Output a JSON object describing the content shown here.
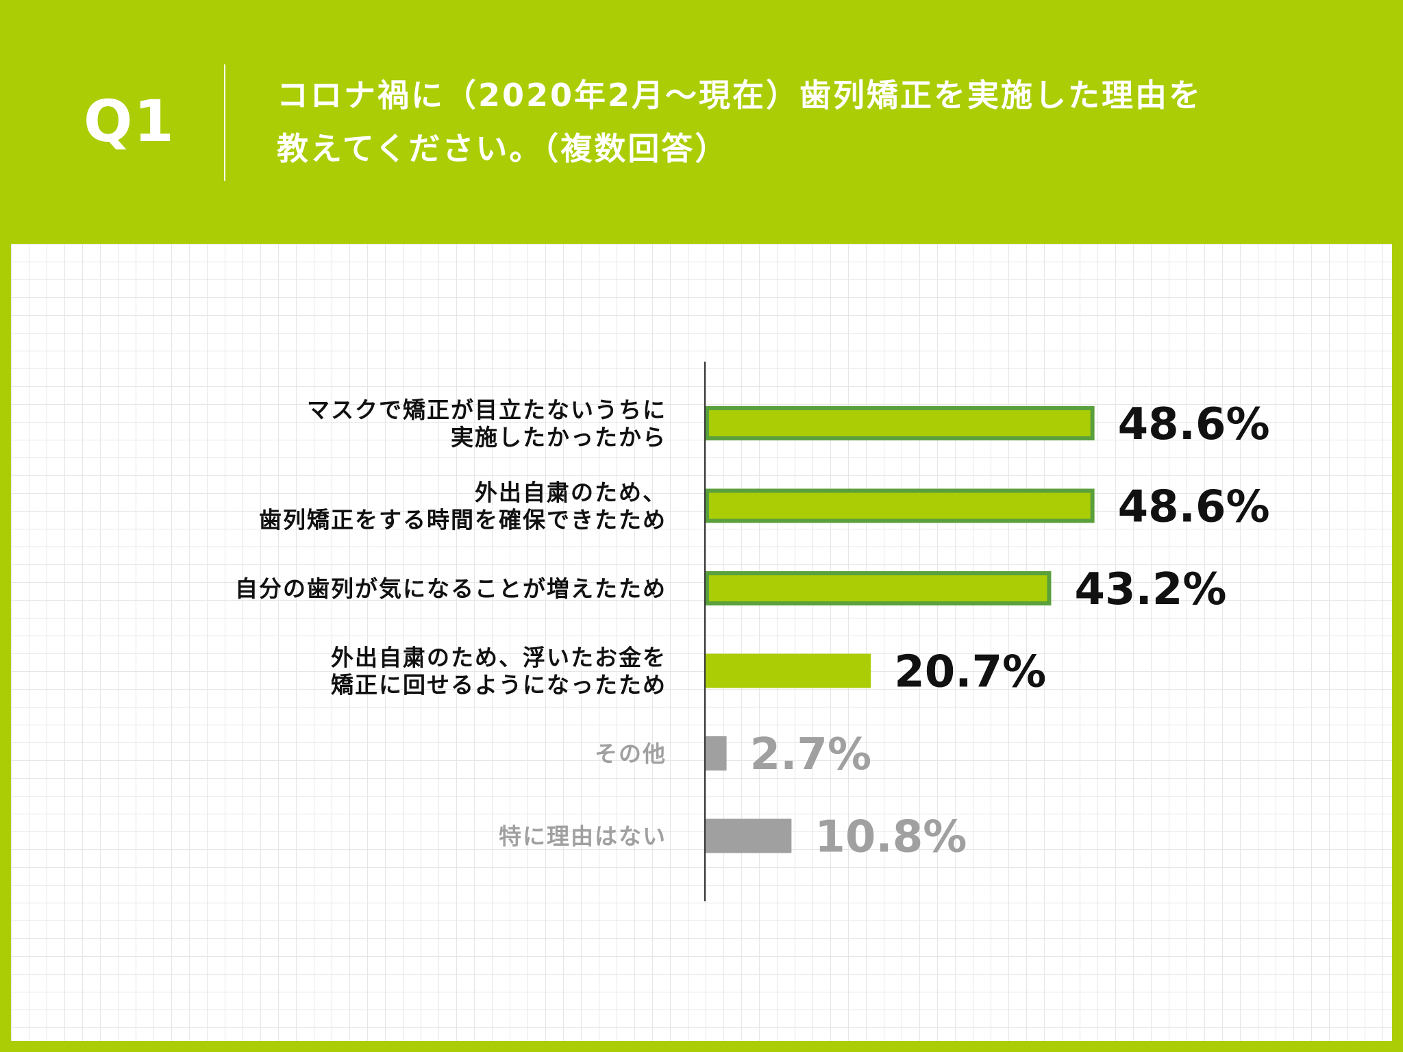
{
  "header": {
    "q_label": "Q1",
    "question_lines": [
      "コロナ禍に（2020年2月～現在）歯列矯正を実施した理由を",
      "教えてください。（複数回答）"
    ]
  },
  "colors": {
    "background": "#abcd05",
    "bar_fill": "#abcd05",
    "bar_border": "#5aa03c",
    "bar_gray": "#a0a0a0",
    "text_dark": "#111111",
    "text_gray": "#a0a0a0"
  },
  "chart_data": {
    "type": "bar",
    "orientation": "horizontal",
    "title": "",
    "xlabel": "",
    "ylabel": "",
    "xlim": [
      0,
      50
    ],
    "grid": true,
    "categories": [
      [
        "マスクで矯正が目立たないうちに",
        "実施したかったから"
      ],
      [
        "外出自粛のため、",
        "歯列矯正をする時間を確保できたため"
      ],
      [
        "自分の歯列が気になることが増えたため"
      ],
      [
        "外出自粛のため、浮いたお金を",
        "矯正に回せるようになったため"
      ],
      [
        "その他"
      ],
      [
        "特に理由はない"
      ]
    ],
    "values": [
      48.6,
      48.6,
      43.2,
      20.7,
      2.7,
      10.8
    ],
    "value_labels": [
      "48.6%",
      "48.6%",
      "43.2%",
      "20.7%",
      "2.7%",
      "10.8%"
    ],
    "styles": [
      "outlined",
      "outlined",
      "outlined",
      "solid",
      "gray",
      "gray"
    ]
  }
}
